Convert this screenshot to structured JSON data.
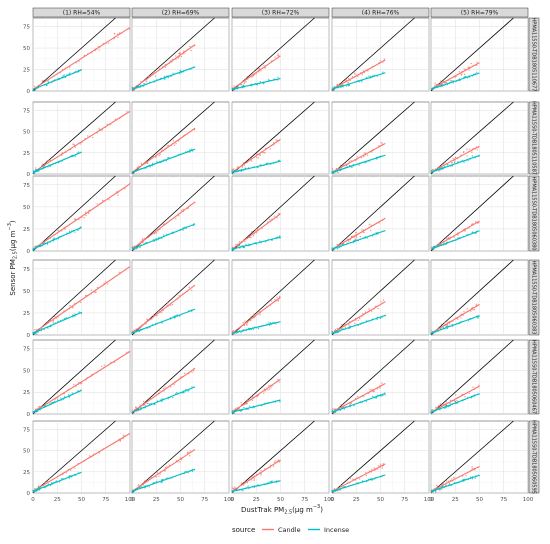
{
  "chart_data": {
    "type": "scatter",
    "facet_columns": [
      "(1) RH=54%",
      "(2) RH=69%",
      "(3) RH=72%",
      "(4) RH=76%",
      "(5) RH=79%"
    ],
    "facet_rows": [
      "HPMA115S0-TDB1805110677",
      "HPMA115S0-TDB1805110587",
      "HPMA115S0-TDB1805060380",
      "HPMA115S0-TDB1805060383",
      "HPMA115S0-TDB1805060467",
      "HPMA115S0-TDB1805060595"
    ],
    "xlabel": "DustTrak PM",
    "xlabel_sub": "2.5",
    "xlabel_units_pre": "(μg m",
    "xlabel_units_sup": "−3",
    "xlabel_units_post": ")",
    "ylabel": "Sensor PM",
    "ylabel_sub": "2.5",
    "ylabel_units_pre": "(μg m",
    "ylabel_units_sup": "−3",
    "ylabel_units_post": ")",
    "xlim": [
      0,
      100
    ],
    "ylim": [
      0,
      85
    ],
    "x_ticks": [
      "0",
      "25",
      "50",
      "75",
      "100"
    ],
    "y_ticks": [
      "0",
      "25",
      "50",
      "75"
    ],
    "reference_line": "1:1",
    "grid": true,
    "legend": {
      "title": "source",
      "position": "bottom",
      "items": [
        {
          "label": "Candle",
          "color": "#F8766D"
        },
        {
          "label": "Incense",
          "color": "#00BFC4"
        }
      ]
    },
    "series_fits": [
      {
        "source": "Candle",
        "column_x_max": [
          100,
          65,
          50,
          55,
          50
        ],
        "column_slope": [
          0.72,
          0.8,
          0.78,
          0.62,
          0.62
        ],
        "row_slope_factor": [
          1.0,
          1.0,
          1.03,
          1.05,
          0.97,
          0.95
        ]
      },
      {
        "source": "Incense",
        "column_x_max": [
          50,
          65,
          50,
          55,
          50
        ],
        "column_slope": [
          0.45,
          0.4,
          0.25,
          0.35,
          0.38
        ],
        "row_slope_factor": [
          1.0,
          1.05,
          1.1,
          1.05,
          1.12,
          1.0
        ]
      }
    ]
  }
}
